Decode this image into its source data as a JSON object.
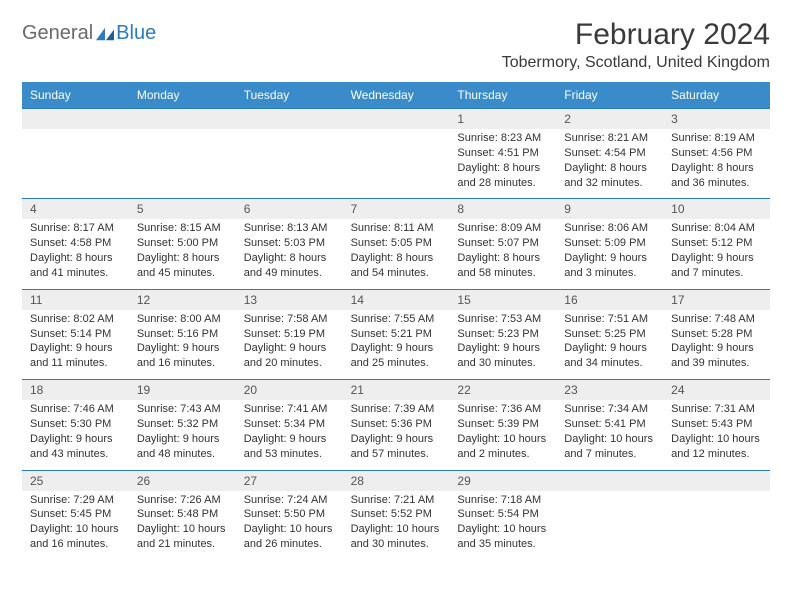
{
  "logo": {
    "part1": "General",
    "part2": "Blue"
  },
  "colors": {
    "header_bg": "#3a8bc9",
    "row_divider": "#2b7bbf",
    "daynum_bg": "#eeeeee",
    "logo_gray": "#6a6a6a",
    "logo_blue": "#2b7bbf"
  },
  "title": "February 2024",
  "location": "Tobermory, Scotland, United Kingdom",
  "weekdays": [
    "Sunday",
    "Monday",
    "Tuesday",
    "Wednesday",
    "Thursday",
    "Friday",
    "Saturday"
  ],
  "weeks": [
    [
      null,
      null,
      null,
      null,
      {
        "d": "1",
        "sr": "Sunrise: 8:23 AM",
        "ss": "Sunset: 4:51 PM",
        "dl": "Daylight: 8 hours and 28 minutes."
      },
      {
        "d": "2",
        "sr": "Sunrise: 8:21 AM",
        "ss": "Sunset: 4:54 PM",
        "dl": "Daylight: 8 hours and 32 minutes."
      },
      {
        "d": "3",
        "sr": "Sunrise: 8:19 AM",
        "ss": "Sunset: 4:56 PM",
        "dl": "Daylight: 8 hours and 36 minutes."
      }
    ],
    [
      {
        "d": "4",
        "sr": "Sunrise: 8:17 AM",
        "ss": "Sunset: 4:58 PM",
        "dl": "Daylight: 8 hours and 41 minutes."
      },
      {
        "d": "5",
        "sr": "Sunrise: 8:15 AM",
        "ss": "Sunset: 5:00 PM",
        "dl": "Daylight: 8 hours and 45 minutes."
      },
      {
        "d": "6",
        "sr": "Sunrise: 8:13 AM",
        "ss": "Sunset: 5:03 PM",
        "dl": "Daylight: 8 hours and 49 minutes."
      },
      {
        "d": "7",
        "sr": "Sunrise: 8:11 AM",
        "ss": "Sunset: 5:05 PM",
        "dl": "Daylight: 8 hours and 54 minutes."
      },
      {
        "d": "8",
        "sr": "Sunrise: 8:09 AM",
        "ss": "Sunset: 5:07 PM",
        "dl": "Daylight: 8 hours and 58 minutes."
      },
      {
        "d": "9",
        "sr": "Sunrise: 8:06 AM",
        "ss": "Sunset: 5:09 PM",
        "dl": "Daylight: 9 hours and 3 minutes."
      },
      {
        "d": "10",
        "sr": "Sunrise: 8:04 AM",
        "ss": "Sunset: 5:12 PM",
        "dl": "Daylight: 9 hours and 7 minutes."
      }
    ],
    [
      {
        "d": "11",
        "sr": "Sunrise: 8:02 AM",
        "ss": "Sunset: 5:14 PM",
        "dl": "Daylight: 9 hours and 11 minutes."
      },
      {
        "d": "12",
        "sr": "Sunrise: 8:00 AM",
        "ss": "Sunset: 5:16 PM",
        "dl": "Daylight: 9 hours and 16 minutes."
      },
      {
        "d": "13",
        "sr": "Sunrise: 7:58 AM",
        "ss": "Sunset: 5:19 PM",
        "dl": "Daylight: 9 hours and 20 minutes."
      },
      {
        "d": "14",
        "sr": "Sunrise: 7:55 AM",
        "ss": "Sunset: 5:21 PM",
        "dl": "Daylight: 9 hours and 25 minutes."
      },
      {
        "d": "15",
        "sr": "Sunrise: 7:53 AM",
        "ss": "Sunset: 5:23 PM",
        "dl": "Daylight: 9 hours and 30 minutes."
      },
      {
        "d": "16",
        "sr": "Sunrise: 7:51 AM",
        "ss": "Sunset: 5:25 PM",
        "dl": "Daylight: 9 hours and 34 minutes."
      },
      {
        "d": "17",
        "sr": "Sunrise: 7:48 AM",
        "ss": "Sunset: 5:28 PM",
        "dl": "Daylight: 9 hours and 39 minutes."
      }
    ],
    [
      {
        "d": "18",
        "sr": "Sunrise: 7:46 AM",
        "ss": "Sunset: 5:30 PM",
        "dl": "Daylight: 9 hours and 43 minutes."
      },
      {
        "d": "19",
        "sr": "Sunrise: 7:43 AM",
        "ss": "Sunset: 5:32 PM",
        "dl": "Daylight: 9 hours and 48 minutes."
      },
      {
        "d": "20",
        "sr": "Sunrise: 7:41 AM",
        "ss": "Sunset: 5:34 PM",
        "dl": "Daylight: 9 hours and 53 minutes."
      },
      {
        "d": "21",
        "sr": "Sunrise: 7:39 AM",
        "ss": "Sunset: 5:36 PM",
        "dl": "Daylight: 9 hours and 57 minutes."
      },
      {
        "d": "22",
        "sr": "Sunrise: 7:36 AM",
        "ss": "Sunset: 5:39 PM",
        "dl": "Daylight: 10 hours and 2 minutes."
      },
      {
        "d": "23",
        "sr": "Sunrise: 7:34 AM",
        "ss": "Sunset: 5:41 PM",
        "dl": "Daylight: 10 hours and 7 minutes."
      },
      {
        "d": "24",
        "sr": "Sunrise: 7:31 AM",
        "ss": "Sunset: 5:43 PM",
        "dl": "Daylight: 10 hours and 12 minutes."
      }
    ],
    [
      {
        "d": "25",
        "sr": "Sunrise: 7:29 AM",
        "ss": "Sunset: 5:45 PM",
        "dl": "Daylight: 10 hours and 16 minutes."
      },
      {
        "d": "26",
        "sr": "Sunrise: 7:26 AM",
        "ss": "Sunset: 5:48 PM",
        "dl": "Daylight: 10 hours and 21 minutes."
      },
      {
        "d": "27",
        "sr": "Sunrise: 7:24 AM",
        "ss": "Sunset: 5:50 PM",
        "dl": "Daylight: 10 hours and 26 minutes."
      },
      {
        "d": "28",
        "sr": "Sunrise: 7:21 AM",
        "ss": "Sunset: 5:52 PM",
        "dl": "Daylight: 10 hours and 30 minutes."
      },
      {
        "d": "29",
        "sr": "Sunrise: 7:18 AM",
        "ss": "Sunset: 5:54 PM",
        "dl": "Daylight: 10 hours and 35 minutes."
      },
      null,
      null
    ]
  ]
}
